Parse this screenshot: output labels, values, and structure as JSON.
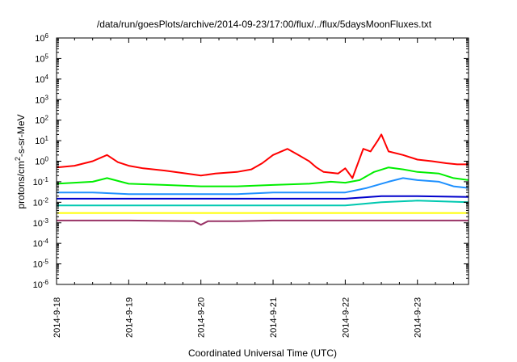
{
  "chart_data": {
    "type": "line",
    "title": "/data/run/goesPlots/archive/2014-09-23/17:00/flux/../flux/5daysMoonFluxes.txt",
    "xlabel": "Coordinated Universal Time (UTC)",
    "ylabel_parts": {
      "pre": "protons/cm",
      "sup": "2",
      "post": "-s-sr-MeV"
    },
    "x_axis": {
      "unit": "days",
      "range": [
        "2014-09-18 00:00",
        "2014-09-23 17:00"
      ],
      "tick_labels": [
        "2014-9-18",
        "2014-9-19",
        "2014-9-20",
        "2014-9-21",
        "2014-9-22",
        "2014-9-23"
      ]
    },
    "y_axis": {
      "scale": "log",
      "ylim": [
        1e-06,
        1000000.0
      ],
      "tick_exponents": [
        -6,
        -5,
        -4,
        -3,
        -2,
        -1,
        0,
        1,
        2,
        3,
        4,
        5,
        6
      ]
    },
    "grid": false,
    "legend": "none",
    "series": [
      {
        "color": "#ff0000",
        "x": [
          0,
          0.25,
          0.5,
          0.7,
          0.85,
          1.0,
          1.2,
          1.5,
          1.8,
          2.0,
          2.2,
          2.5,
          2.7,
          2.85,
          3.0,
          3.2,
          3.35,
          3.5,
          3.6,
          3.7,
          3.9,
          4.0,
          4.1,
          4.25,
          4.35,
          4.45,
          4.5,
          4.6,
          4.8,
          5.0,
          5.2,
          5.4,
          5.55,
          5.708
        ],
        "values": [
          0.5,
          0.6,
          1.0,
          2.0,
          0.9,
          0.6,
          0.45,
          0.35,
          0.25,
          0.2,
          0.25,
          0.3,
          0.4,
          0.8,
          2.0,
          4.0,
          2.0,
          1.0,
          0.5,
          0.3,
          0.25,
          0.45,
          0.15,
          4.0,
          3.0,
          10.0,
          20.0,
          3.0,
          2.0,
          1.2,
          1.0,
          0.8,
          0.7,
          0.7
        ]
      },
      {
        "color": "#00ee00",
        "x": [
          0,
          0.5,
          0.7,
          1.0,
          1.5,
          2.0,
          2.5,
          3.0,
          3.5,
          3.8,
          4.0,
          4.2,
          4.4,
          4.6,
          4.8,
          5.0,
          5.3,
          5.5,
          5.708
        ],
        "values": [
          0.08,
          0.1,
          0.15,
          0.08,
          0.07,
          0.06,
          0.06,
          0.07,
          0.08,
          0.1,
          0.09,
          0.12,
          0.3,
          0.5,
          0.4,
          0.3,
          0.25,
          0.15,
          0.12
        ]
      },
      {
        "color": "#1e90ff",
        "x": [
          0,
          0.5,
          1.0,
          1.5,
          2.0,
          2.5,
          3.0,
          3.5,
          4.0,
          4.3,
          4.6,
          4.8,
          5.0,
          5.3,
          5.5,
          5.708
        ],
        "values": [
          0.03,
          0.03,
          0.025,
          0.025,
          0.025,
          0.025,
          0.03,
          0.03,
          0.03,
          0.05,
          0.1,
          0.15,
          0.12,
          0.1,
          0.06,
          0.05
        ]
      },
      {
        "color": "#0000cc",
        "x": [
          0,
          1.0,
          2.0,
          3.0,
          4.0,
          4.5,
          5.0,
          5.708
        ],
        "values": [
          0.015,
          0.015,
          0.015,
          0.015,
          0.015,
          0.02,
          0.02,
          0.018
        ]
      },
      {
        "color": "#00c8b0",
        "x": [
          0,
          1.0,
          2.0,
          3.0,
          4.0,
          4.5,
          5.0,
          5.708
        ],
        "values": [
          0.007,
          0.007,
          0.007,
          0.007,
          0.007,
          0.01,
          0.012,
          0.01
        ]
      },
      {
        "color": "#ffff00",
        "x": [
          0,
          1.0,
          2.0,
          3.0,
          4.0,
          5.0,
          5.708
        ],
        "values": [
          0.003,
          0.003,
          0.003,
          0.003,
          0.003,
          0.003,
          0.003
        ]
      },
      {
        "color": "#993366",
        "x": [
          0,
          1.0,
          1.9,
          2.0,
          2.1,
          2.5,
          3.0,
          4.0,
          5.0,
          5.708
        ],
        "values": [
          0.0013,
          0.0013,
          0.0012,
          0.0008,
          0.0012,
          0.0012,
          0.0013,
          0.0013,
          0.0013,
          0.0013
        ]
      }
    ]
  }
}
